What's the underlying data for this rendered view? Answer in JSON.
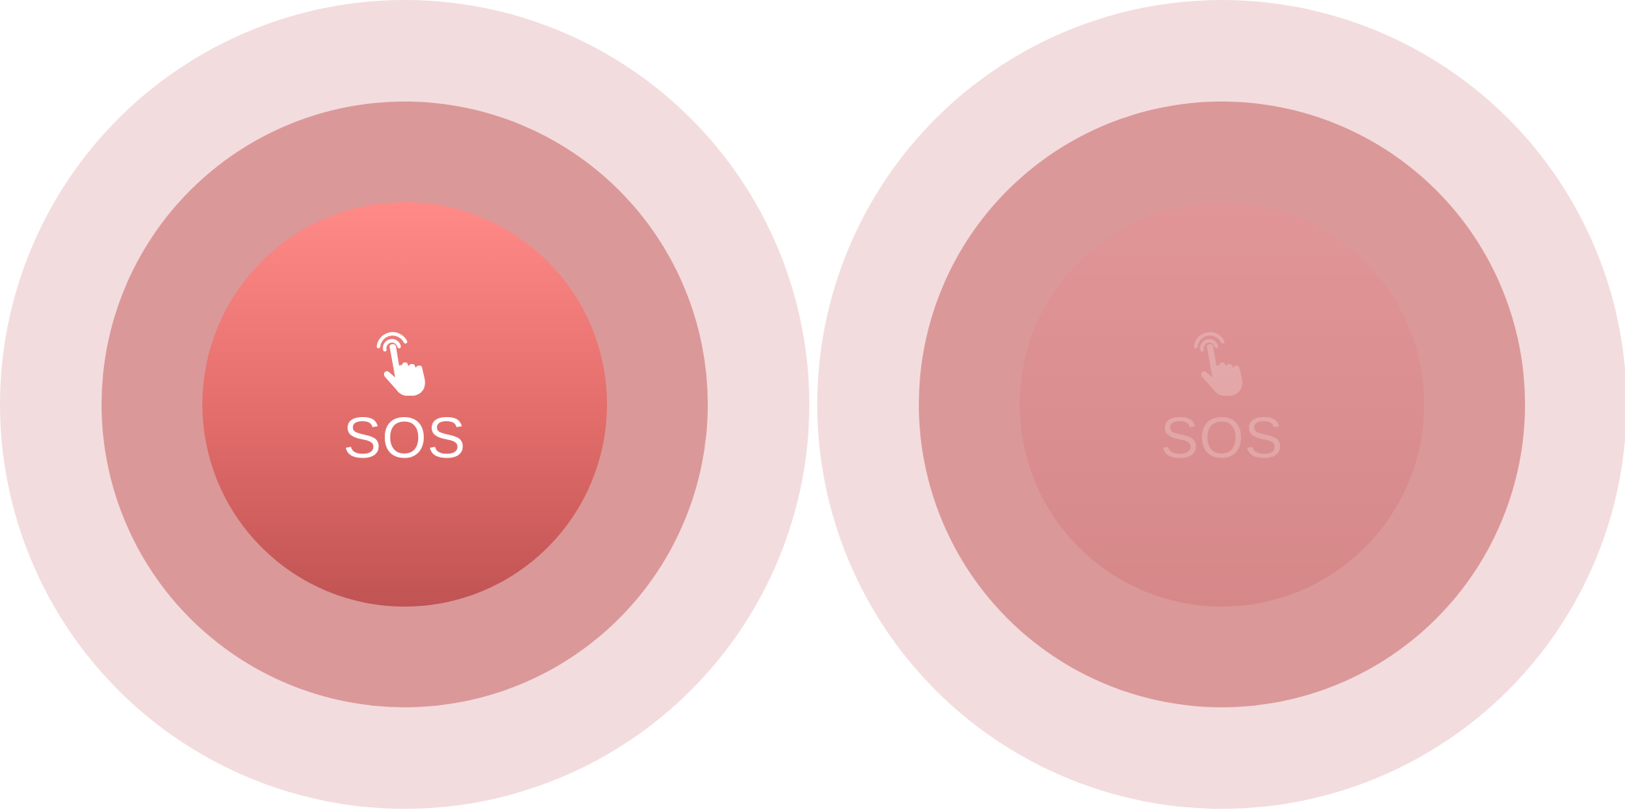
{
  "widgets": [
    {
      "state": "active",
      "label": "SOS",
      "icon": "tap-hand-icon",
      "colors": {
        "outer_ring": "#f3dcde",
        "middle_ring": "#db9899",
        "button_top": "#ff8a87",
        "button_mid": "#e16c6a",
        "button_bottom": "#c05353",
        "text": "#ffffff"
      }
    },
    {
      "state": "inactive",
      "label": "SOS",
      "icon": "tap-hand-icon",
      "colors": {
        "outer_ring": "#f3dcde",
        "middle_ring": "#db9899",
        "button_top": "#e09597",
        "button_bottom": "#d68889",
        "text": "#ffffff"
      }
    }
  ]
}
